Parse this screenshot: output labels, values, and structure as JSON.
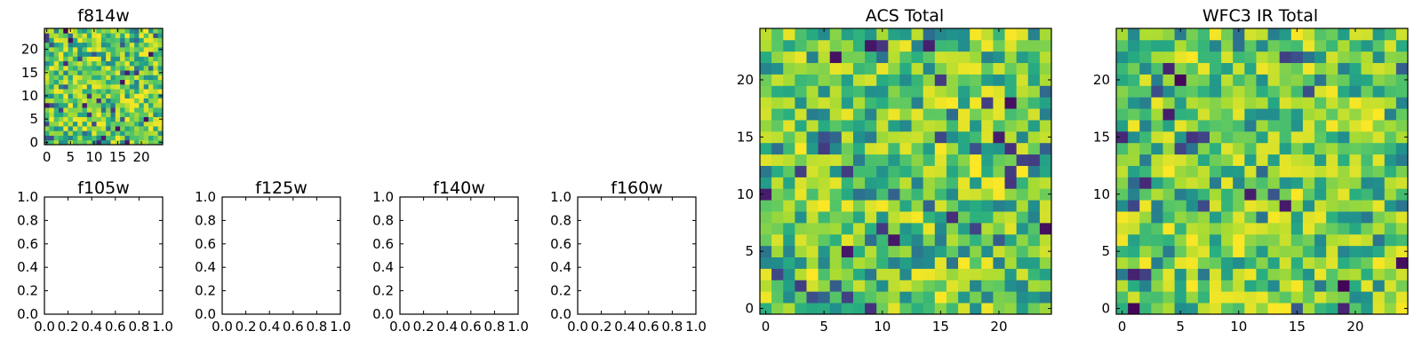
{
  "colormap": "viridis",
  "colors": {
    "frame": "#000000",
    "background": "#ffffff",
    "viridis_low": "#440154",
    "viridis_mid": "#21918c",
    "viridis_high": "#fde725"
  },
  "chart_data": [
    {
      "type": "heatmap",
      "title": "f814w",
      "grid_size": [
        25,
        25
      ],
      "xlim": [
        -0.5,
        24.5
      ],
      "ylim": [
        -0.5,
        24.5
      ],
      "xticks": [
        0,
        5,
        10,
        15,
        20
      ],
      "yticks": [
        0,
        5,
        10,
        15,
        20
      ],
      "values_note": "",
      "seed": 11
    },
    {
      "type": "empty",
      "title": "f105w",
      "xlim": [
        0,
        1
      ],
      "ylim": [
        0,
        1
      ],
      "xticks": [
        0.0,
        0.2,
        0.4,
        0.6,
        0.8,
        1.0
      ],
      "yticks": [
        0.0,
        0.2,
        0.4,
        0.6,
        0.8,
        1.0
      ]
    },
    {
      "type": "empty",
      "title": "f125w",
      "xlim": [
        0,
        1
      ],
      "ylim": [
        0,
        1
      ],
      "xticks": [
        0.0,
        0.2,
        0.4,
        0.6,
        0.8,
        1.0
      ],
      "yticks": [
        0.0,
        0.2,
        0.4,
        0.6,
        0.8,
        1.0
      ]
    },
    {
      "type": "empty",
      "title": "f140w",
      "xlim": [
        0,
        1
      ],
      "ylim": [
        0,
        1
      ],
      "xticks": [
        0.0,
        0.2,
        0.4,
        0.6,
        0.8,
        1.0
      ],
      "yticks": [
        0.0,
        0.2,
        0.4,
        0.6,
        0.8,
        1.0
      ]
    },
    {
      "type": "empty",
      "title": "f160w",
      "xlim": [
        0,
        1
      ],
      "ylim": [
        0,
        1
      ],
      "xticks": [
        0.0,
        0.2,
        0.4,
        0.6,
        0.8,
        1.0
      ],
      "yticks": [
        0.0,
        0.2,
        0.4,
        0.6,
        0.8,
        1.0
      ]
    },
    {
      "type": "heatmap",
      "title": "ACS Total",
      "grid_size": [
        25,
        25
      ],
      "xlim": [
        -0.5,
        24.5
      ],
      "ylim": [
        -0.5,
        24.5
      ],
      "xticks": [
        0,
        5,
        10,
        15,
        20
      ],
      "yticks": [
        0,
        5,
        10,
        15,
        20
      ],
      "seed": 23
    },
    {
      "type": "heatmap",
      "title": "WFC3 IR Total",
      "grid_size": [
        25,
        25
      ],
      "xlim": [
        -0.5,
        24.5
      ],
      "ylim": [
        -0.5,
        24.5
      ],
      "xticks": [
        0,
        5,
        10,
        15,
        20
      ],
      "yticks": [
        0,
        5,
        10,
        15,
        20
      ],
      "seed": 37
    }
  ]
}
